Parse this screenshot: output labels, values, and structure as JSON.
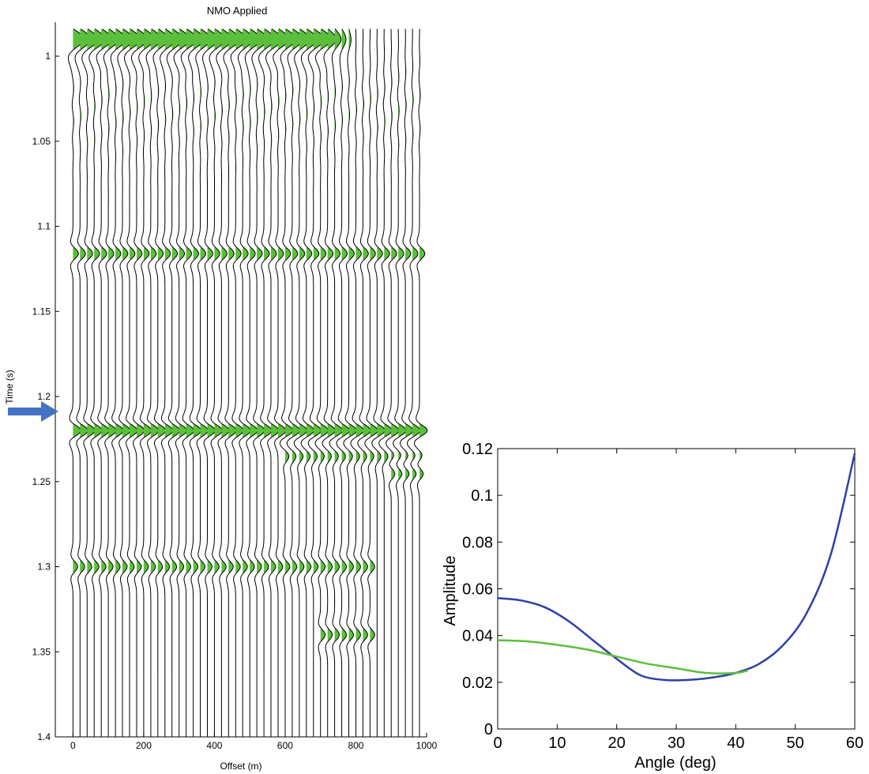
{
  "chart_data": [
    {
      "type": "line",
      "subtype": "seismic-wiggle-gather",
      "title": "NMO Applied",
      "xlabel": "Offset (m)",
      "ylabel": "Time (s)",
      "xlim": [
        -50,
        1000
      ],
      "ylim": [
        1.4,
        0.98
      ],
      "x_ticks": [
        0,
        200,
        400,
        600,
        800,
        1000
      ],
      "y_ticks": [
        1,
        1.05,
        1.1,
        1.15,
        1.2,
        1.25,
        1.3,
        1.35,
        1.4
      ],
      "x_tick_labels": [
        "0",
        "200",
        "400",
        "600",
        "800",
        "1000"
      ],
      "y_tick_labels": [
        "1",
        "1.05",
        "1.1",
        "1.15",
        "1.2",
        "1.25",
        "1.3",
        "1.35",
        "1.4"
      ],
      "trace_offsets": [
        0,
        20,
        40,
        60,
        80,
        100,
        120,
        140,
        160,
        180,
        200,
        220,
        240,
        260,
        280,
        300,
        320,
        340,
        360,
        380,
        400,
        420,
        440,
        460,
        480,
        500,
        520,
        540,
        560,
        580,
        600,
        620,
        640,
        660,
        680,
        700,
        720,
        740,
        760,
        780,
        800,
        820,
        840,
        860,
        880,
        900,
        920,
        940,
        960,
        980
      ],
      "fill_color": "#5bbf3b",
      "trace_color": "#000000",
      "marker": "arrow at 1.22 s",
      "events": [
        {
          "time": 0.99,
          "amplitude": 0.7,
          "width": 0.009,
          "offset_range": [
            0,
            700
          ],
          "taper_to": 800
        },
        {
          "time": 1.116,
          "amplitude": 0.35,
          "width": 0.006,
          "offset_range": [
            0,
            1000
          ]
        },
        {
          "time": 1.22,
          "amplitude": 0.5,
          "width": 0.006,
          "offset_range": [
            0,
            1000
          ]
        },
        {
          "time": 1.235,
          "amplitude": 0.25,
          "width": 0.006,
          "offset_range": [
            600,
            1000
          ]
        },
        {
          "time": 1.245,
          "amplitude": 0.3,
          "width": 0.006,
          "offset_range": [
            900,
            1000
          ]
        },
        {
          "time": 1.3,
          "amplitude": 0.3,
          "width": 0.006,
          "offset_range": [
            0,
            850
          ]
        },
        {
          "time": 1.34,
          "amplitude": 0.3,
          "width": 0.006,
          "offset_range": [
            700,
            850
          ]
        }
      ]
    },
    {
      "type": "line",
      "title": "",
      "xlabel": "Angle (deg)",
      "ylabel": "Amplitude",
      "xlim": [
        0,
        60
      ],
      "ylim": [
        0,
        0.12
      ],
      "x_ticks": [
        0,
        10,
        20,
        30,
        40,
        50,
        60
      ],
      "y_ticks": [
        0,
        0.02,
        0.04,
        0.06,
        0.08,
        0.1,
        0.12
      ],
      "x_tick_labels": [
        "0",
        "10",
        "20",
        "30",
        "40",
        "50",
        "60"
      ],
      "y_tick_labels": [
        "0",
        "0.02",
        "0.04",
        "0.06",
        "0.08",
        "0.1",
        "0.12"
      ],
      "grid": false,
      "series": [
        {
          "color": "#2e3fa8",
          "x": [
            0,
            4,
            8,
            12,
            16,
            20,
            24,
            28,
            32,
            36,
            40,
            44,
            48,
            52,
            56,
            60
          ],
          "y": [
            0.056,
            0.055,
            0.052,
            0.046,
            0.038,
            0.03,
            0.023,
            0.021,
            0.021,
            0.022,
            0.024,
            0.028,
            0.036,
            0.05,
            0.075,
            0.118
          ]
        },
        {
          "color": "#5bbf3b",
          "x": [
            0,
            5,
            10,
            15,
            20,
            25,
            30,
            35,
            40,
            42
          ],
          "y": [
            0.038,
            0.0375,
            0.036,
            0.034,
            0.031,
            0.028,
            0.026,
            0.024,
            0.024,
            0.025
          ]
        }
      ]
    }
  ]
}
